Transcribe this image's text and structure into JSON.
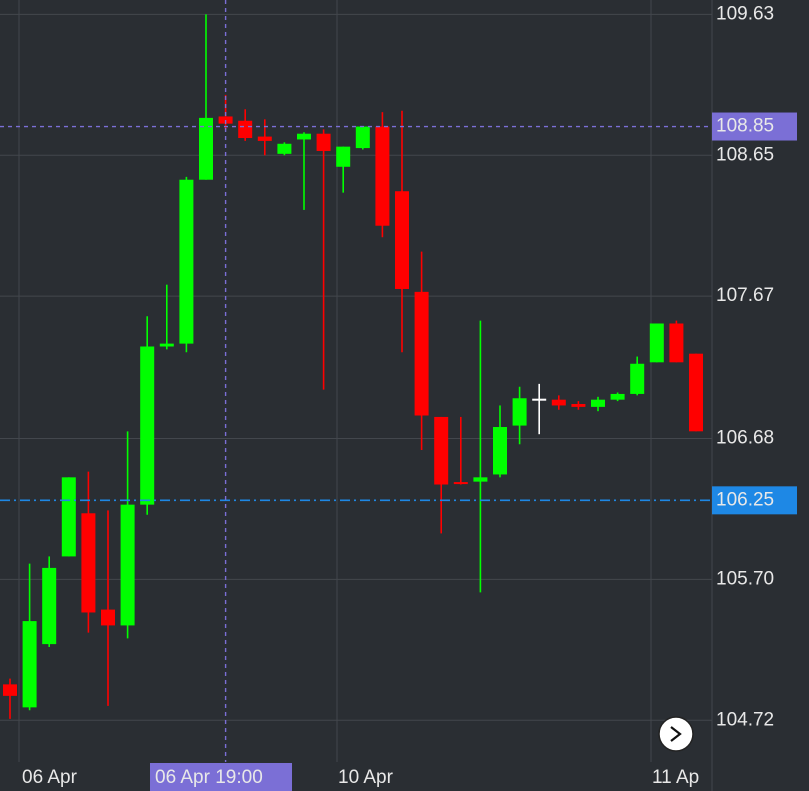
{
  "chart_data": {
    "type": "candlestick",
    "up_color": "#00ff00",
    "down_color": "#ff0000",
    "doji_color": "#ffffff",
    "open": [
      104.97,
      104.81,
      105.25,
      105.86,
      106.16,
      105.49,
      105.38,
      106.22,
      107.32,
      107.34,
      108.48,
      108.92,
      108.89,
      108.78,
      108.66,
      108.76,
      108.8,
      108.57,
      108.7,
      108.85,
      108.4,
      107.7,
      106.83,
      106.37,
      106.38,
      106.43,
      106.77,
      106.95,
      106.95,
      106.92,
      106.9,
      106.95,
      106.99,
      107.21,
      107.48,
      107.27
    ],
    "high": [
      105.01,
      105.81,
      105.86,
      106.41,
      106.45,
      106.18,
      106.73,
      107.53,
      107.75,
      108.5,
      109.63,
      109.07,
      108.97,
      108.9,
      108.74,
      108.81,
      108.83,
      108.71,
      108.85,
      108.95,
      108.96,
      107.98,
      106.83,
      106.83,
      107.5,
      106.91,
      107.04,
      107.06,
      106.98,
      106.94,
      106.97,
      107.0,
      107.25,
      107.48,
      107.5,
      107.27
    ],
    "low": [
      104.73,
      104.79,
      105.23,
      105.86,
      105.33,
      104.82,
      105.29,
      106.15,
      107.3,
      107.28,
      108.48,
      108.83,
      108.75,
      108.65,
      108.65,
      108.27,
      107.02,
      108.39,
      108.69,
      108.08,
      107.28,
      106.6,
      106.02,
      106.36,
      105.61,
      106.41,
      106.64,
      106.71,
      106.88,
      106.88,
      106.87,
      106.94,
      106.98,
      107.21,
      107.21,
      106.73
    ],
    "close": [
      104.89,
      105.41,
      105.78,
      106.41,
      105.47,
      105.38,
      106.22,
      107.32,
      107.34,
      108.48,
      108.91,
      108.87,
      108.77,
      108.75,
      108.73,
      108.8,
      108.68,
      108.71,
      108.85,
      108.16,
      107.72,
      106.84,
      106.36,
      106.36,
      106.41,
      106.76,
      106.96,
      106.95,
      106.91,
      106.9,
      106.95,
      106.99,
      107.2,
      107.48,
      107.21,
      106.73
    ],
    "ylim": [
      104.43,
      109.73
    ],
    "yticks": [
      109.63,
      108.65,
      107.67,
      106.68,
      {
        "value": 105.7,
        "label": "105.70"
      },
      104.72
    ],
    "x_labels": [
      "06 Apr",
      "10 Apr",
      "11 Ap"
    ],
    "crosshair": {
      "value": 108.85,
      "color": "#7b6fd6",
      "time_label": "06 Apr 19:00"
    },
    "price_line": {
      "value": 106.25,
      "color": "#1e88e5"
    }
  }
}
